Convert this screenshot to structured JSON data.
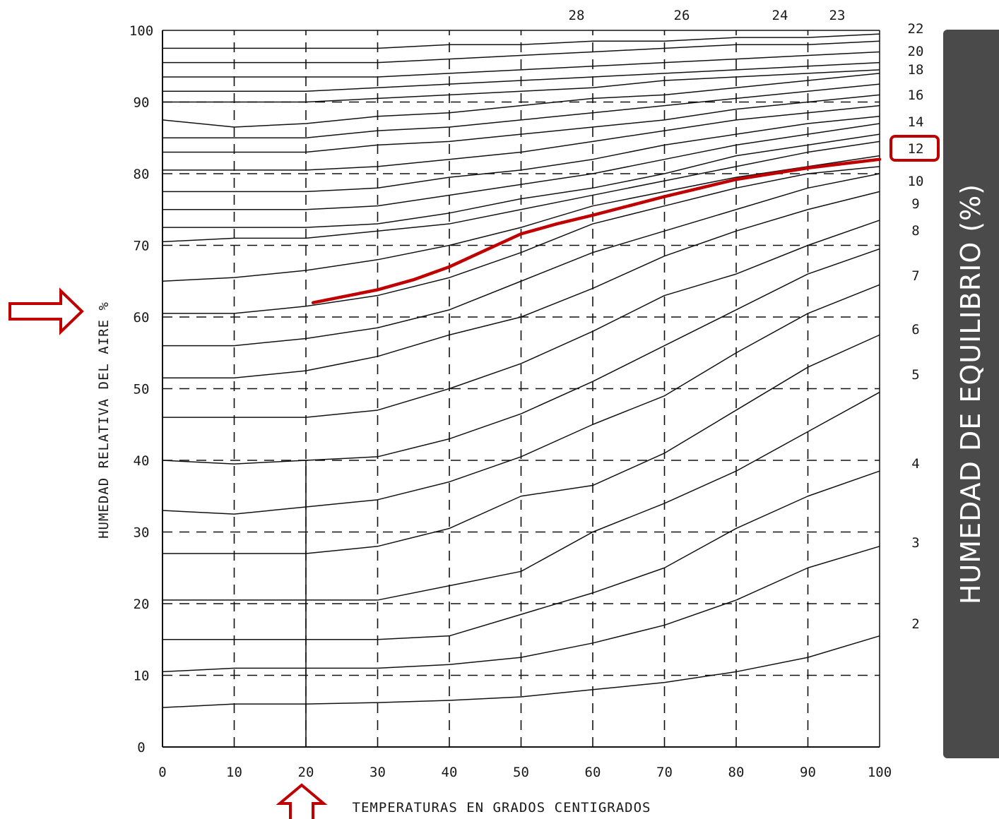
{
  "side_banner": {
    "label": "HUMEDAD DE EQUILIBRIO (%)"
  },
  "colors": {
    "grid": "#111111",
    "highlight": "#c00000",
    "banner": "#4a4a4a"
  },
  "chart_data": {
    "type": "line",
    "xlabel": "TEMPERATURAS EN GRADOS CENTIGRADOS",
    "ylabel": "HUMEDAD RELATIVA DEL AIRE %",
    "xlim": [
      0,
      100
    ],
    "ylim": [
      0,
      100
    ],
    "x_ticks": [
      "0",
      "10",
      "20",
      "30",
      "40",
      "50",
      "60",
      "70",
      "80",
      "90",
      "100"
    ],
    "y_ticks": [
      "0",
      "10",
      "20",
      "30",
      "40",
      "50",
      "60",
      "70",
      "80",
      "90",
      "100"
    ],
    "grid": "dashed",
    "right_labels": [
      "22",
      "20",
      "18",
      "16",
      "14",
      "12",
      "10",
      "9",
      "8",
      "7",
      "6",
      "5",
      "4",
      "3",
      "2"
    ],
    "top_labels": [
      "28",
      "26",
      "24",
      "23"
    ],
    "highlighted_label": "12",
    "x": [
      0,
      10,
      20,
      30,
      40,
      50,
      60,
      70,
      80,
      90,
      100
    ],
    "series": [
      {
        "values": [
          5.5,
          6,
          6,
          6.2,
          6.5,
          7,
          8,
          9,
          10.5,
          12.5,
          15.5
        ]
      },
      {
        "values": [
          10.5,
          11,
          11,
          11,
          11.5,
          12.5,
          14.5,
          17,
          20.5,
          25,
          28
        ]
      },
      {
        "values": [
          15,
          15,
          15,
          15,
          15.5,
          18.5,
          21.5,
          25,
          30.5,
          35,
          38.5
        ]
      },
      {
        "values": [
          20.5,
          20.5,
          20.5,
          20.5,
          22.5,
          24.5,
          30,
          34,
          38.5,
          44,
          49.5
        ]
      },
      {
        "values": [
          27,
          27,
          27,
          28,
          30.5,
          35,
          36.5,
          41,
          47,
          53,
          57.5
        ]
      },
      {
        "values": [
          33,
          32.5,
          33.5,
          34.5,
          37,
          40.5,
          45,
          49,
          55,
          60.5,
          64.5
        ]
      },
      {
        "values": [
          40,
          39.5,
          40,
          40.5,
          43,
          46.5,
          51,
          56,
          61,
          66,
          69.5
        ]
      },
      {
        "values": [
          46,
          46,
          46,
          47,
          50,
          53.5,
          58,
          63,
          66,
          70,
          73.5
        ]
      },
      {
        "values": [
          51.5,
          51.5,
          52.5,
          54.5,
          57.5,
          60,
          64,
          68.5,
          72,
          75,
          77.5
        ]
      },
      {
        "values": [
          56,
          56,
          57,
          58.5,
          61,
          65,
          69,
          72,
          75,
          78,
          80
        ]
      },
      {
        "values": [
          60.5,
          60.5,
          61.5,
          63,
          65.5,
          69,
          73,
          75.5,
          78,
          80,
          81
        ]
      },
      {
        "values": [
          65,
          65.5,
          66.5,
          68,
          70,
          72.5,
          75.5,
          77.5,
          79.5,
          81,
          82.5
        ]
      },
      {
        "values": [
          70.5,
          71,
          71,
          72,
          73,
          75,
          77,
          79,
          81,
          83,
          84.5
        ]
      },
      {
        "values": [
          72.5,
          72.5,
          72.5,
          73,
          74.5,
          76.5,
          78,
          80,
          82.5,
          84,
          85.5
        ]
      },
      {
        "values": [
          75,
          75,
          75,
          75.5,
          77,
          78.5,
          80,
          82,
          84,
          85.5,
          87
        ]
      },
      {
        "values": [
          77.5,
          77.5,
          77.5,
          78,
          79.5,
          80.5,
          82,
          84,
          85.5,
          87,
          88
        ]
      },
      {
        "values": [
          80.5,
          80.5,
          80.5,
          81,
          82,
          83,
          84.5,
          86,
          87.5,
          88.5,
          89.5
        ]
      },
      {
        "values": [
          83,
          83,
          83,
          84,
          84.5,
          85.5,
          86.5,
          87.5,
          89,
          90,
          91
        ]
      },
      {
        "values": [
          85,
          85,
          85,
          86,
          86.5,
          87.5,
          88.5,
          89.5,
          90.5,
          91.5,
          92.5
        ]
      },
      {
        "values": [
          87.5,
          86.5,
          87,
          88,
          88.5,
          89.5,
          90.5,
          91,
          92,
          93,
          94
        ]
      },
      {
        "values": [
          90,
          90,
          90,
          90.5,
          91,
          91.5,
          92,
          93,
          93.5,
          94,
          94.5
        ]
      },
      {
        "values": [
          91.5,
          91.5,
          91.5,
          92,
          92.5,
          93,
          93.5,
          94,
          94.5,
          95,
          95.5
        ]
      },
      {
        "values": [
          93.5,
          93.5,
          93.5,
          93.5,
          94,
          94.5,
          95,
          95.5,
          96,
          96.5,
          97
        ]
      },
      {
        "values": [
          95.5,
          95.5,
          95.5,
          95.5,
          96,
          96.5,
          97,
          97.5,
          98,
          98,
          98.5
        ]
      },
      {
        "values": [
          97.5,
          97.5,
          97.5,
          97.5,
          98,
          98,
          98.5,
          98.5,
          99,
          99,
          99.5
        ]
      }
    ],
    "highlighted_series": {
      "label": "12",
      "x": [
        21,
        25,
        30,
        35,
        40,
        45,
        50,
        55,
        60,
        65,
        70,
        75,
        80,
        85,
        90,
        95,
        100
      ],
      "values": [
        62,
        62.8,
        63.8,
        65.2,
        67,
        69.3,
        71.6,
        73,
        74.2,
        75.5,
        76.8,
        78,
        79.2,
        80,
        80.8,
        81.4,
        82
      ]
    },
    "annotations": [
      {
        "type": "arrow",
        "target": "y-axis-title"
      },
      {
        "type": "arrow",
        "target": "x-tick-20"
      },
      {
        "type": "box",
        "target": "right-label-12"
      }
    ]
  }
}
